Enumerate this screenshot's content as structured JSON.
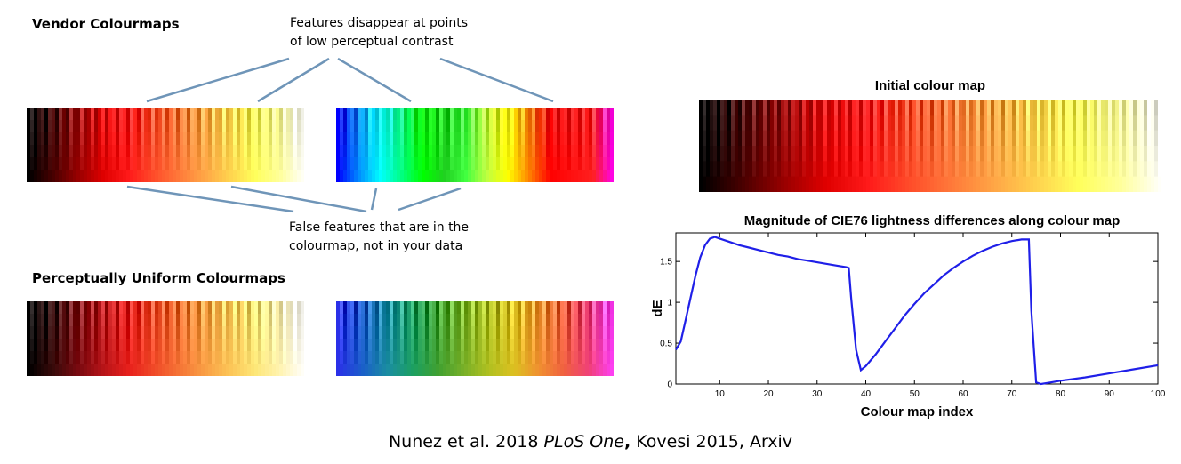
{
  "left": {
    "vendor_heading": "Vendor Colourmaps",
    "uniform_heading": "Perceptually Uniform Colourmaps",
    "top_note_line1": "Features disappear at points",
    "top_note_line2": "of low perceptual contrast",
    "bottom_note_line1": "False features that are in the",
    "bottom_note_line2": "colourmap, not in your data",
    "callout_color": "#6f95b8"
  },
  "colormaps": {
    "vendor_hot": [
      "#000000",
      "#4a0000",
      "#9a0000",
      "#e00000",
      "#ff1a1a",
      "#ff4d2a",
      "#ff7a3a",
      "#ffa646",
      "#ffd24e",
      "#ffff5a",
      "#ffff9a",
      "#ffffff"
    ],
    "vendor_jet": [
      "#0000ff",
      "#0090ff",
      "#00ffff",
      "#00ff80",
      "#00ff00",
      "#20d020",
      "#40ff40",
      "#c0ff40",
      "#ffff00",
      "#ff8000",
      "#ff0000",
      "#ff1010",
      "#ff2020",
      "#ff00ff"
    ],
    "uniform_hot": [
      "#000000",
      "#3a0a0a",
      "#7a0a10",
      "#b81418",
      "#e8201c",
      "#f04a28",
      "#f57436",
      "#f99e44",
      "#fcc456",
      "#fde676",
      "#fff3b0",
      "#ffffff"
    ],
    "uniform_rainbow": [
      "#2a30e8",
      "#1a60c8",
      "#1a8ea0",
      "#1ca060",
      "#40a030",
      "#78b028",
      "#b0c020",
      "#dcc020",
      "#f09030",
      "#f06040",
      "#f04078",
      "#ff40ff"
    ],
    "initial_hot": [
      "#000000",
      "#4a0000",
      "#9a0000",
      "#e00000",
      "#ff1a1a",
      "#ff4d2a",
      "#ff7a3a",
      "#ffa646",
      "#ffd24e",
      "#ffff5a",
      "#ffff9a",
      "#ffffff"
    ]
  },
  "right": {
    "initial_title": "Initial colour map"
  },
  "chart_data": {
    "type": "line",
    "title": "Magnitude of CIE76 lightness differences along colour map",
    "xlabel": "Colour map index",
    "ylabel": "dE",
    "xlim": [
      1,
      100
    ],
    "ylim": [
      0,
      1.85
    ],
    "xticks": [
      "10",
      "20",
      "30",
      "40",
      "50",
      "60",
      "70",
      "80",
      "90",
      "100"
    ],
    "yticks": [
      "0",
      "0.5",
      "1",
      "1.5"
    ],
    "line_color": "#1f1fe8",
    "series": [
      {
        "x": [
          1,
          2,
          3,
          4,
          5,
          6,
          7,
          8,
          9,
          10,
          12,
          14,
          16,
          18,
          20,
          22,
          24,
          26,
          28,
          30,
          32,
          34,
          36,
          36.5,
          37,
          38,
          39,
          40,
          42,
          44,
          46,
          48,
          50,
          52,
          54,
          56,
          58,
          60,
          62,
          64,
          66,
          68,
          70,
          72,
          73,
          73.5,
          74,
          75,
          76,
          78,
          80,
          85,
          90,
          95,
          100
        ],
        "y": [
          0.42,
          0.52,
          0.78,
          1.05,
          1.32,
          1.55,
          1.7,
          1.78,
          1.8,
          1.78,
          1.74,
          1.7,
          1.67,
          1.64,
          1.61,
          1.58,
          1.56,
          1.53,
          1.51,
          1.49,
          1.47,
          1.45,
          1.43,
          1.42,
          1.05,
          0.42,
          0.17,
          0.22,
          0.36,
          0.52,
          0.68,
          0.84,
          0.98,
          1.11,
          1.22,
          1.33,
          1.42,
          1.5,
          1.57,
          1.63,
          1.68,
          1.72,
          1.75,
          1.77,
          1.77,
          1.77,
          0.9,
          0.02,
          0.0,
          0.02,
          0.04,
          0.08,
          0.13,
          0.18,
          0.23
        ]
      }
    ]
  },
  "citation": {
    "prefix": "Nunez et al. 2018 ",
    "journal": "PLoS One",
    "comma": ",",
    "suffix": " Kovesi 2015, Arxiv"
  }
}
